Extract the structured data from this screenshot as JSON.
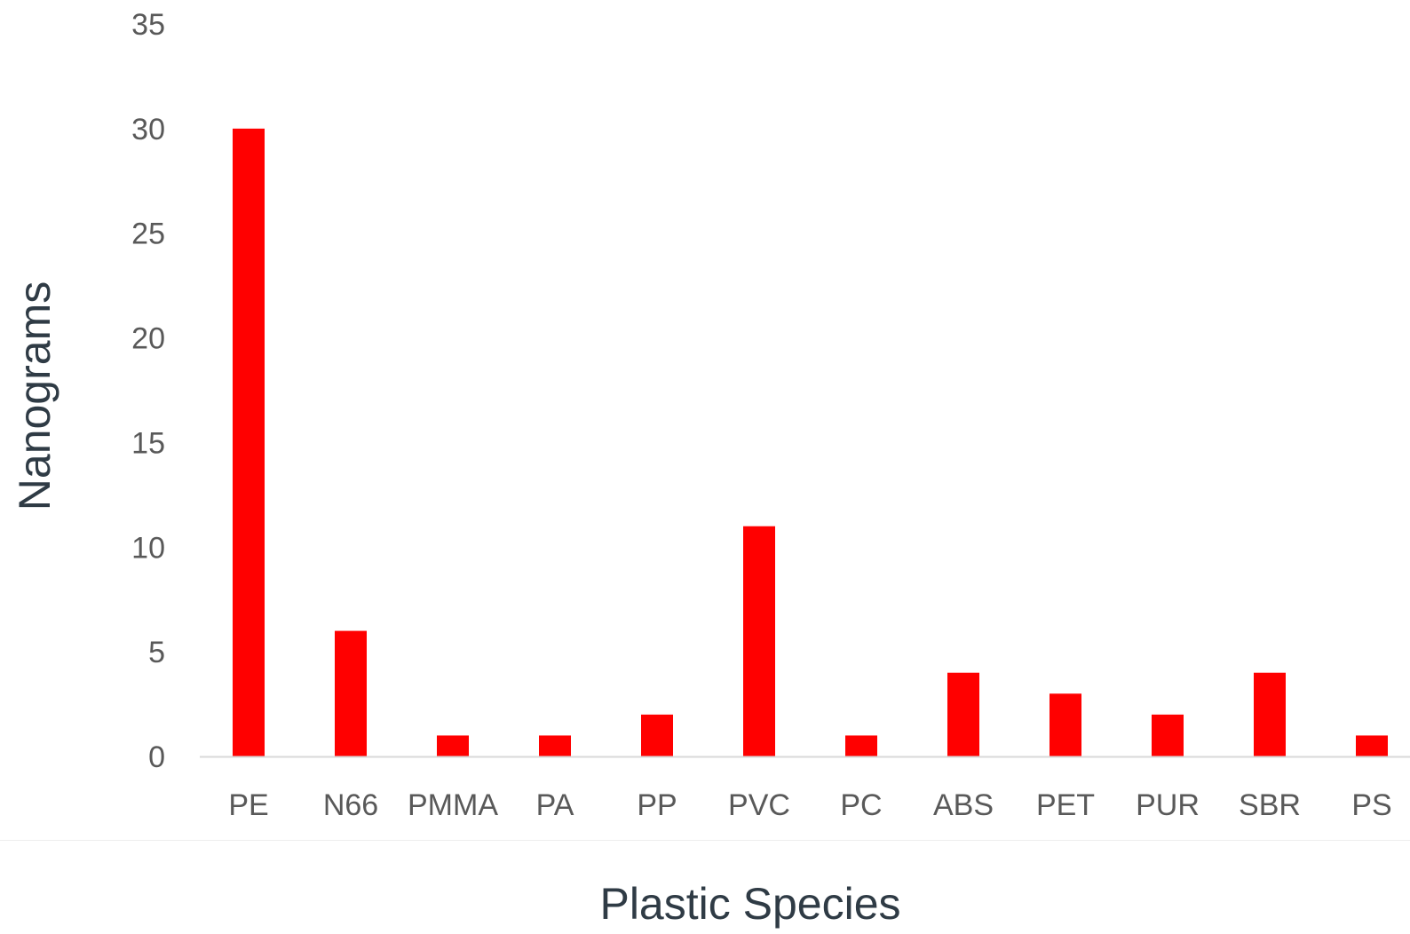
{
  "chart_data": {
    "type": "bar",
    "title": "",
    "xlabel": "Plastic Species",
    "ylabel": "Nanograms",
    "categories": [
      "PE",
      "N66",
      "PMMA",
      "PA",
      "PP",
      "PVC",
      "PC",
      "ABS",
      "PET",
      "PUR",
      "SBR",
      "PS"
    ],
    "values": [
      30,
      6,
      1,
      1,
      2,
      11,
      1,
      4,
      3,
      2,
      4,
      1
    ],
    "ylim": [
      0,
      35
    ],
    "yticks": [
      0,
      5,
      10,
      15,
      20,
      25,
      30,
      35
    ],
    "grid": false,
    "legend": "none",
    "bar_color": "#ff0000",
    "axis_color": "#d9d9d9"
  }
}
